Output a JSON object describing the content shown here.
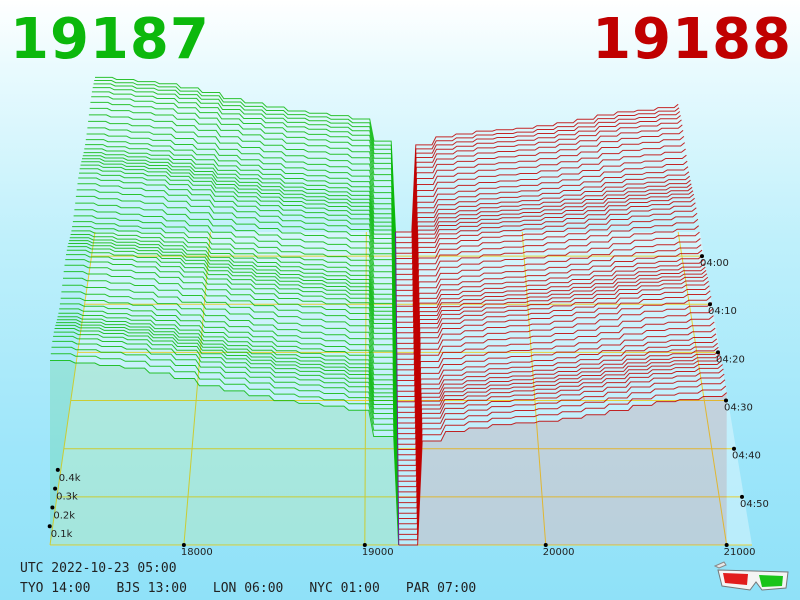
{
  "header": {
    "bid_price": "19187",
    "ask_price": "19188",
    "bid_color": "#0cb80c",
    "ask_color": "#c00000"
  },
  "timestamps": {
    "utc": "UTC 2022-10-23 05:00",
    "zones": [
      "TYO 14:00",
      "BJS 13:00",
      "LON 06:00",
      "NYC 01:00",
      "PAR 07:00"
    ]
  },
  "icons": {
    "glasses": "3d-glasses-icon"
  },
  "chart_data": {
    "type": "area",
    "x_tick_labels": [
      "18000",
      "19000",
      "20000",
      "21000"
    ],
    "x_ticks": [
      18000,
      19000,
      20000,
      21000
    ],
    "x_range": [
      17260,
      21140
    ],
    "y_tick_labels": [
      "0.1k",
      "0.2k",
      "0.3k",
      "0.4k"
    ],
    "y_ticks": [
      100,
      200,
      300,
      400
    ],
    "time_tick_labels": [
      "04:00",
      "04:10",
      "04:20",
      "04:30",
      "04:40",
      "04:50"
    ],
    "time_ticks_minutes": [
      0,
      10,
      20,
      30,
      40,
      50
    ],
    "time_range_minutes": [
      -5,
      60
    ],
    "snapshot_count": 60,
    "mid_price": 19187.5,
    "series": [
      {
        "name": "19187",
        "color": "#0cb80c",
        "price_levels": [
          17260,
          17700,
          18000,
          18100,
          18500,
          18800,
          18990,
          19080,
          19130,
          19160,
          19187
        ],
        "cumulative_volume": [
          460,
          440,
          410,
          395,
          360,
          345,
          330,
          240,
          140,
          40,
          0
        ]
      },
      {
        "name": "19188",
        "color": "#c00000",
        "price_levels": [
          19188,
          19200,
          19240,
          19400,
          19700,
          20000,
          20300,
          20550,
          20800,
          21000
        ],
        "cumulative_volume": [
          0,
          55,
          240,
          280,
          300,
          310,
          330,
          355,
          365,
          380
        ]
      }
    ],
    "grid": true
  }
}
